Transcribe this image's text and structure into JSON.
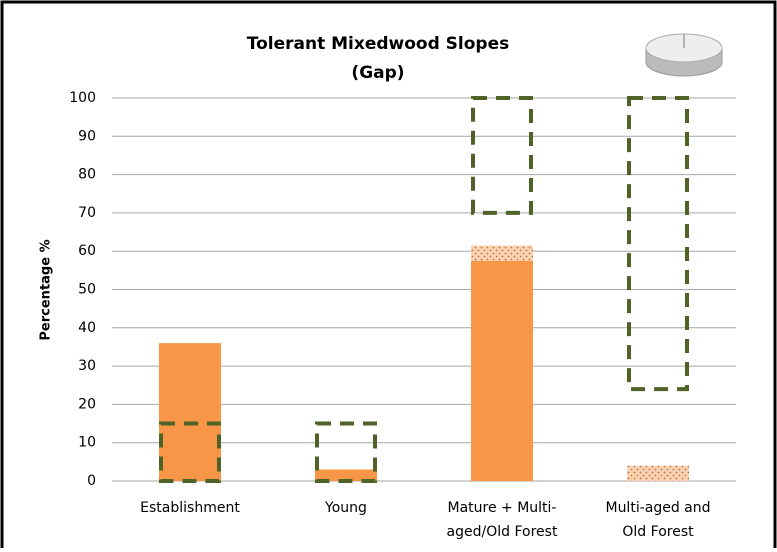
{
  "chart_data": {
    "type": "bar",
    "title": "Tolerant Mixedwood Slopes",
    "subtitle": "(Gap)",
    "y_label": "Percentage %",
    "categories": [
      [
        "Establishment"
      ],
      [
        "Young"
      ],
      [
        "Mature + Multi-",
        "aged/Old Forest"
      ],
      [
        "Multi-aged and",
        "Old Forest"
      ]
    ],
    "series": [
      {
        "color": "#f79646",
        "values": [
          36,
          3,
          57.5,
          0
        ]
      },
      {
        "color": "#fbd3b4",
        "pattern": "dotted",
        "values": [
          0,
          0,
          4,
          4
        ]
      }
    ],
    "range_low": [
      0,
      0,
      70,
      24
    ],
    "range_high": [
      15,
      15,
      100,
      100
    ],
    "range_color": "#4f6228",
    "ylim": [
      0,
      100
    ],
    "yticks": [
      0,
      10,
      20,
      30,
      40,
      50,
      60,
      70,
      80,
      90,
      100
    ],
    "grid": true
  }
}
